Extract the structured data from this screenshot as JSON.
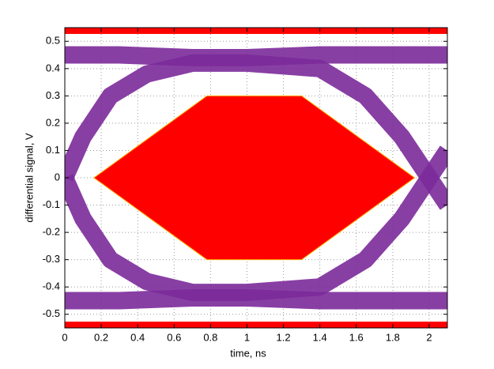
{
  "chart_data": {
    "type": "eye",
    "xlabel": "time, ns",
    "ylabel": "differential signal, V",
    "xlim": [
      0,
      2.1
    ],
    "ylim": [
      -0.55,
      0.55
    ],
    "xticks": [
      0,
      0.2,
      0.4,
      0.6,
      0.8,
      1,
      1.2,
      1.4,
      1.6,
      1.8,
      2
    ],
    "yticks": [
      -0.5,
      -0.4,
      -0.3,
      -0.2,
      -0.1,
      0,
      0.1,
      0.2,
      0.3,
      0.4,
      0.5
    ],
    "grid": true,
    "traces": [
      {
        "color": "#7b2a9a",
        "x": [
          0,
          0.3,
          0.7,
          1.0,
          1.4,
          1.8,
          2.1
        ],
        "y": [
          0.45,
          0.45,
          0.44,
          0.44,
          0.45,
          0.45,
          0.45
        ]
      },
      {
        "color": "#7b2a9a",
        "x": [
          0,
          0.3,
          0.7,
          1.0,
          1.4,
          1.8,
          2.1
        ],
        "y": [
          -0.45,
          -0.45,
          -0.44,
          -0.44,
          -0.45,
          -0.45,
          -0.45
        ]
      },
      {
        "color": "#7b2a9a",
        "x": [
          0,
          0.1,
          0.25,
          0.45,
          0.7,
          1.0,
          1.4,
          1.65,
          1.85,
          2.0,
          2.1
        ],
        "y": [
          0,
          0.15,
          0.3,
          0.38,
          0.42,
          0.42,
          0.4,
          0.3,
          0.15,
          0,
          -0.1
        ]
      },
      {
        "color": "#7b2a9a",
        "x": [
          0,
          0.1,
          0.25,
          0.45,
          0.7,
          1.0,
          1.4,
          1.65,
          1.85,
          2.0,
          2.1
        ],
        "y": [
          0,
          -0.15,
          -0.3,
          -0.38,
          -0.42,
          -0.42,
          -0.4,
          -0.3,
          -0.15,
          0,
          0.1
        ]
      }
    ],
    "mask": {
      "color": "#ff0000",
      "x": [
        0.16,
        0.78,
        1.3,
        1.92,
        1.3,
        0.78
      ],
      "y": [
        0,
        0.3,
        0.3,
        0,
        -0.3,
        -0.3
      ]
    },
    "mask_bands": [
      {
        "color": "#ff0000",
        "y": [
          0.527,
          0.55
        ]
      },
      {
        "color": "#ff0000",
        "y": [
          -0.55,
          -0.527
        ]
      }
    ]
  }
}
